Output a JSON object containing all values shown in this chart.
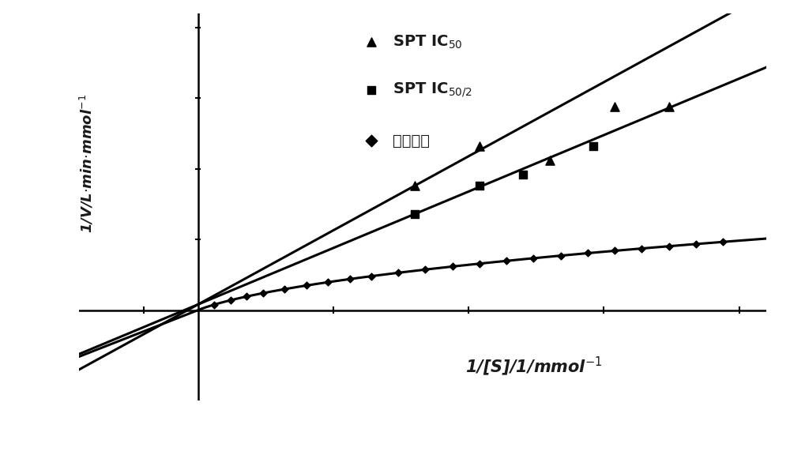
{
  "background_color": "#ffffff",
  "xlabel": "1/[S]/1/mmol$^{-1}$",
  "ylabel": "1/V/L·min·mmol$^{-1}$",
  "xlim": [
    -0.22,
    1.05
  ],
  "ylim": [
    -0.32,
    1.05
  ],
  "IC50_line_slope": 1.05,
  "IC50_line_intercept": 0.02,
  "IC502_line_slope": 0.8,
  "IC502_line_intercept": 0.02,
  "blank_line_a": 0.3,
  "blank_line_b": 0.04,
  "IC50_scatter_x": [
    0.4,
    0.52,
    0.65,
    0.77,
    0.87
  ],
  "IC50_scatter_y": [
    0.44,
    0.58,
    0.53,
    0.72,
    0.72
  ],
  "IC502_scatter_x": [
    0.4,
    0.52,
    0.6,
    0.73
  ],
  "IC502_scatter_y": [
    0.34,
    0.44,
    0.48,
    0.58
  ],
  "blank_scatter_x": [
    0.03,
    0.06,
    0.09,
    0.12,
    0.16,
    0.2,
    0.24,
    0.28,
    0.32,
    0.37,
    0.42,
    0.47,
    0.52,
    0.57,
    0.62,
    0.67,
    0.72,
    0.77,
    0.82,
    0.87,
    0.92,
    0.97
  ],
  "figsize": [
    10.0,
    5.76
  ],
  "dpi": 100,
  "line_width": 2.2,
  "marker_size_large": 65,
  "marker_size_small": 20,
  "text_color": "#1a1a1a"
}
